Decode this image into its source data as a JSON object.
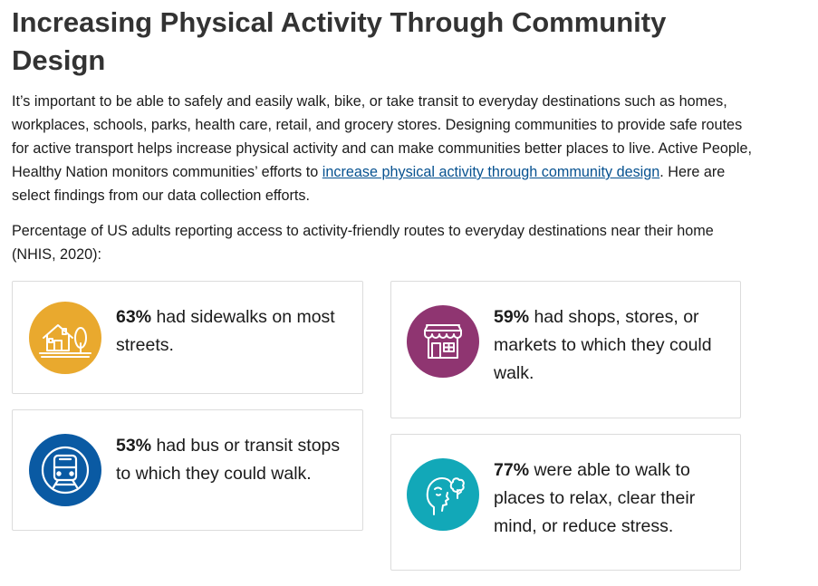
{
  "title": "Increasing Physical Activity Through Community Design",
  "intro": {
    "text_before": "It’s important to be able to safely and easily walk, bike, or take transit to everyday destinations such as homes, workplaces, schools, parks, health care, retail, and grocery stores. Designing communities to provide safe routes for active transport helps increase physical activity and can make communities better places to live. Active People, Healthy Nation monitors communities’ efforts to ",
    "link_text": "increase physical activity through community design",
    "text_after": ". Here are select findings from our data collection efforts."
  },
  "lead": "Percentage of US adults reporting access to activity-friendly routes to everyday destinations near their home (NHIS, 2020):",
  "cards": [
    {
      "percent": "63%",
      "text": " had sidewalks on most streets.",
      "icon": "house-tree-icon",
      "color": "#e9a92e"
    },
    {
      "percent": "53%",
      "text": " had bus or transit stops to which they could walk.",
      "icon": "train-icon",
      "color": "#0a5aa3"
    },
    {
      "percent": "59%",
      "text": " had shops, stores, or markets to which they could walk.",
      "icon": "storefront-icon",
      "color": "#8f3571"
    },
    {
      "percent": "77%",
      "text": " were able to walk to places to relax, clear their mind, or reduce stress.",
      "icon": "head-thought-icon",
      "color": "#12a8b8"
    }
  ]
}
